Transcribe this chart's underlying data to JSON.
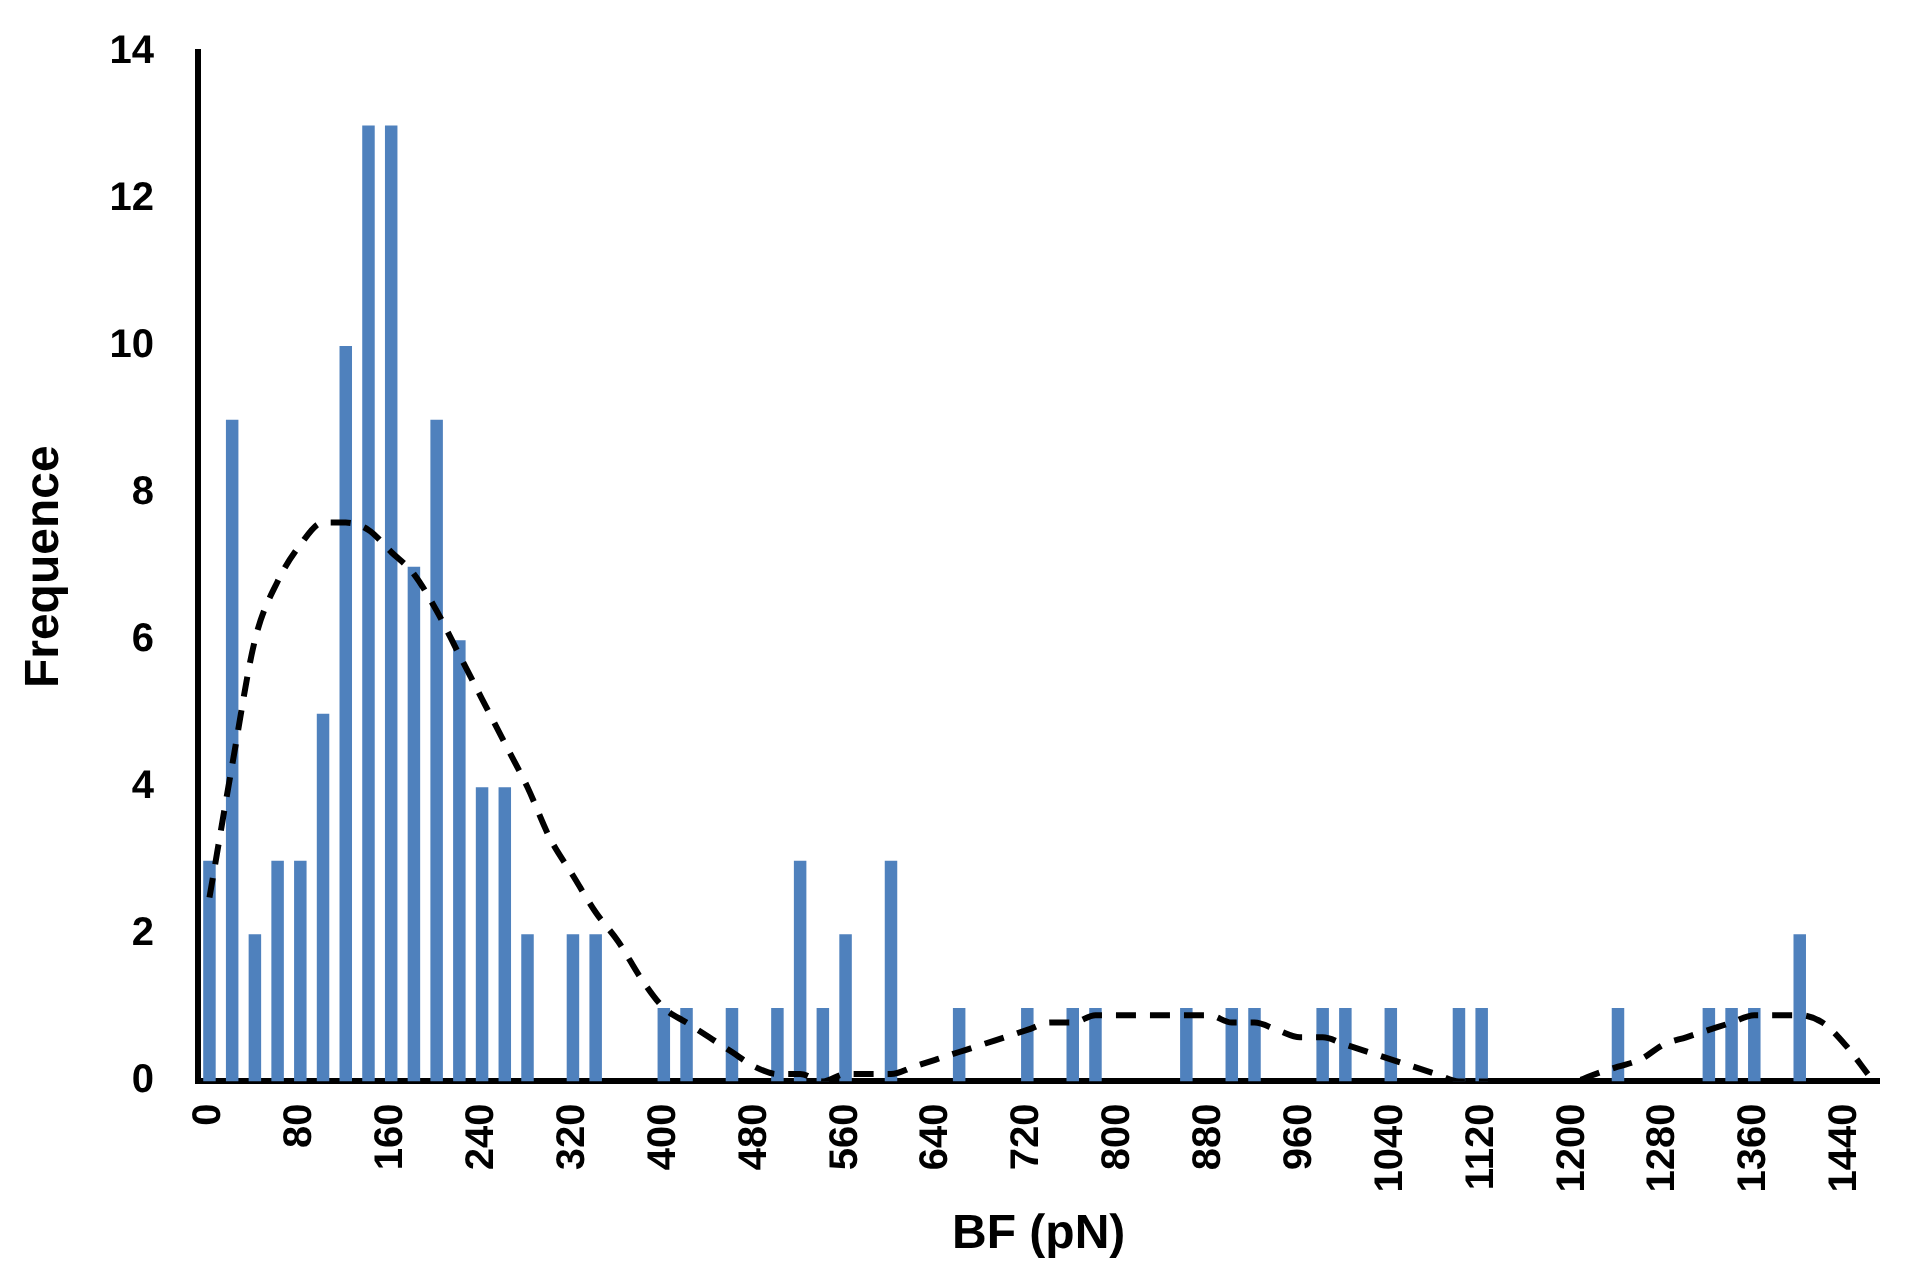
{
  "chart_data": {
    "type": "bar",
    "xlabel": "BF (pN)",
    "ylabel": "Frequence",
    "categories": [
      "0",
      null,
      null,
      null,
      "80",
      null,
      null,
      null,
      "160",
      null,
      null,
      null,
      "240",
      null,
      null,
      null,
      "320",
      null,
      null,
      null,
      "400",
      null,
      null,
      null,
      "480",
      null,
      null,
      null,
      "560",
      null,
      null,
      null,
      "640",
      null,
      null,
      null,
      "720",
      null,
      null,
      null,
      "800",
      null,
      null,
      null,
      "880",
      null,
      null,
      null,
      "960",
      null,
      null,
      null,
      "1040",
      null,
      null,
      null,
      "1120",
      null,
      null,
      null,
      "1200",
      null,
      null,
      null,
      "1280",
      null,
      null,
      null,
      "1360",
      null,
      null,
      null,
      "1440",
      null
    ],
    "series": [
      {
        "color": "#4f81bd",
        "values": [
          3,
          9,
          2,
          3,
          3,
          5,
          10,
          13,
          13,
          7,
          9,
          6,
          4,
          4,
          2,
          0,
          2,
          2,
          0,
          0,
          1,
          1,
          0,
          1,
          0,
          1,
          3,
          1,
          2,
          0,
          3,
          0,
          0,
          1,
          0,
          0,
          1,
          0,
          1,
          1,
          0,
          0,
          0,
          1,
          0,
          1,
          1,
          0,
          0,
          1,
          1,
          0,
          1,
          0,
          0,
          1,
          1,
          0,
          0,
          0,
          0,
          0,
          1,
          0,
          0,
          0,
          1,
          1,
          1,
          0,
          2,
          0,
          0,
          0
        ]
      },
      {
        "type": "line",
        "color": "#000000",
        "line_style": "dashed",
        "marker": "none",
        "values": [
          2.5,
          4.3,
          6.0,
          6.8,
          7.3,
          7.6,
          7.6,
          7.5,
          7.2,
          6.9,
          6.4,
          5.8,
          5.2,
          4.6,
          4.0,
          3.3,
          2.8,
          2.3,
          1.9,
          1.4,
          1.0,
          0.8,
          0.6,
          0.4,
          0.2,
          0.1,
          0.1,
          0.0,
          0.1,
          0.1,
          0.1,
          0.2,
          0.3,
          0.4,
          0.5,
          0.6,
          0.7,
          0.8,
          0.8,
          0.9,
          0.9,
          0.9,
          0.9,
          0.9,
          0.9,
          0.8,
          0.8,
          0.7,
          0.6,
          0.6,
          0.5,
          0.4,
          0.3,
          0.2,
          0.1,
          0.0,
          0.0,
          0.0,
          0.0,
          0.0,
          0.0,
          0.1,
          0.2,
          0.3,
          0.5,
          0.6,
          0.7,
          0.8,
          0.9,
          0.9,
          0.9,
          0.8,
          0.5,
          0.1
        ]
      }
    ],
    "ylim": [
      0,
      14
    ],
    "yticks": [
      0,
      2,
      4,
      6,
      8,
      10,
      12,
      14
    ],
    "grid": false,
    "legend": false
  }
}
